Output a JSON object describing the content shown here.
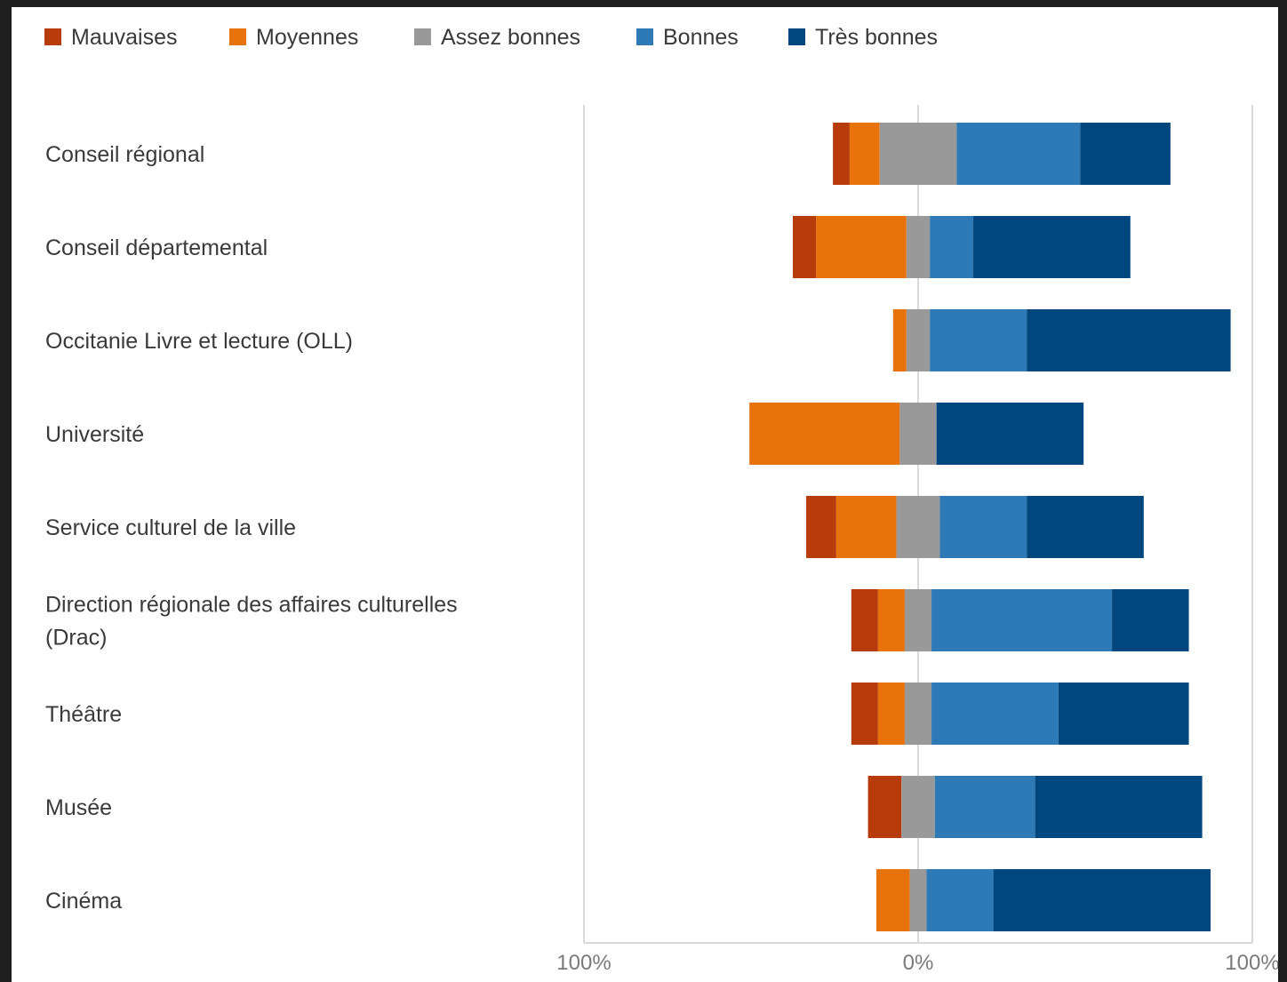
{
  "chart_data": {
    "type": "bar",
    "stacking": "diverging",
    "grid": true,
    "legend_position": "top-left",
    "xlim": [
      -100,
      100
    ],
    "x_ticks": [
      "100%",
      "0%",
      "100%"
    ],
    "categories": [
      [
        "Conseil régional"
      ],
      [
        "Conseil départemental"
      ],
      [
        "Occitanie Livre et lecture (OLL)"
      ],
      [
        "Université"
      ],
      [
        "Service culturel de la ville"
      ],
      [
        "Direction régionale des affaires culturelles",
        "(Drac)"
      ],
      [
        "Théâtre"
      ],
      [
        "Musée"
      ],
      [
        "Cinéma"
      ]
    ],
    "series": [
      {
        "name": "Mauvaises",
        "color": "#B83B0B",
        "values": [
          5,
          7,
          0,
          0,
          9,
          8,
          8,
          10,
          0
        ]
      },
      {
        "name": "Moyennes",
        "color": "#E8730C",
        "values": [
          9,
          27,
          4,
          45,
          18,
          8,
          8,
          0,
          10
        ]
      },
      {
        "name": "Assez bonnes",
        "color": "#999999",
        "values": [
          23,
          7,
          7,
          11,
          13,
          8,
          8,
          10,
          5
        ]
      },
      {
        "name": "Bonnes",
        "color": "#2E7AB6",
        "values": [
          37,
          13,
          29,
          0,
          26,
          54,
          38,
          30,
          20
        ]
      },
      {
        "name": "Très bonnes",
        "color": "#00467F",
        "values": [
          27,
          47,
          61,
          44,
          35,
          23,
          39,
          50,
          65
        ]
      }
    ]
  }
}
